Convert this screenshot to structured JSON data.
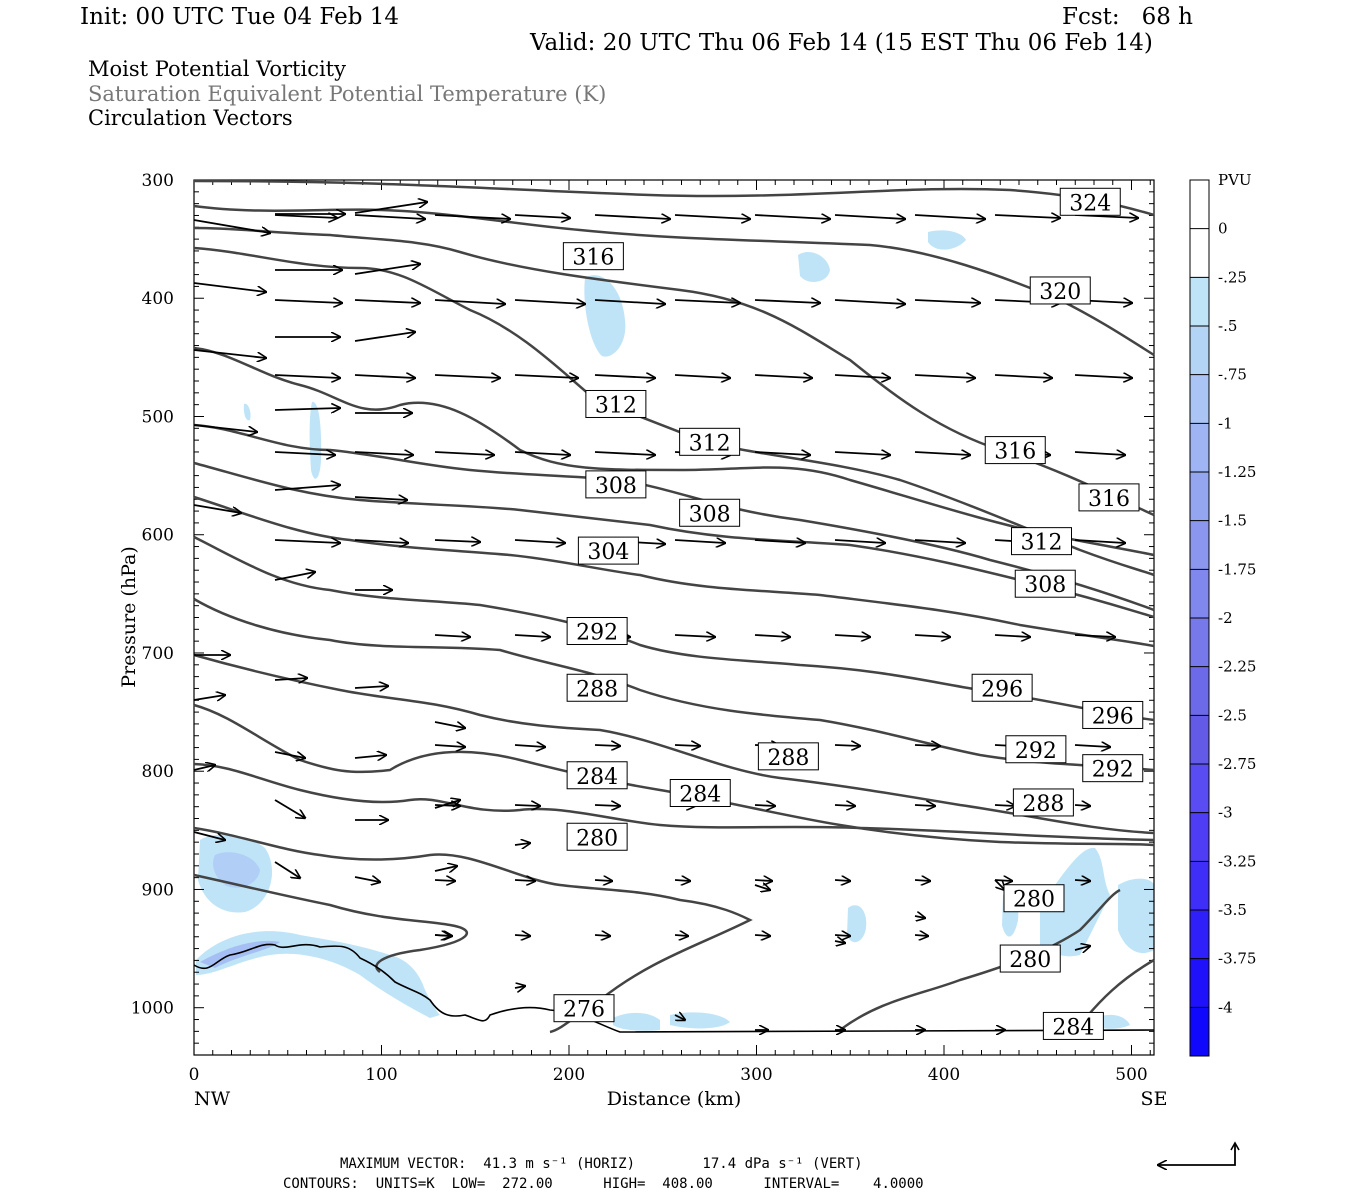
{
  "header": {
    "init": "Init: 00 UTC Tue 04 Feb 14",
    "fcst": "Fcst:   68 h",
    "valid": "Valid: 20 UTC Thu 06 Feb 14 (15 EST Thu 06 Feb 14)"
  },
  "titles": {
    "line1": "Moist Potential Vorticity",
    "line2": "Saturation Equivalent Potential Temperature (K)",
    "line3": "Circulation Vectors"
  },
  "footer": {
    "line1": "MAXIMUM VECTOR:  41.3 m s⁻¹ (HORIZ)        17.4 dPa s⁻¹ (VERT)",
    "line2": "CONTOURS:  UNITS=K  LOW=  272.00      HIGH=  408.00      INTERVAL=    4.0000"
  },
  "chart_data": {
    "type": "cross-section",
    "xlabel": "Distance (km)",
    "ylabel": "Pressure (hPa)",
    "x_ticks": [
      0,
      100,
      200,
      300,
      400,
      500
    ],
    "y_ticks": [
      300,
      400,
      500,
      600,
      700,
      800,
      900,
      1000
    ],
    "xlim": [
      0,
      512
    ],
    "ylim": [
      1040,
      300
    ],
    "endpoint_labels": {
      "left": "NW",
      "right": "SE"
    },
    "colorbar": {
      "title": "PVU",
      "labels": [
        "0",
        "-.25",
        "-.5",
        "-.75",
        "-1",
        "-1.25",
        "-1.5",
        "-1.75",
        "-2",
        "-2.25",
        "-2.5",
        "-2.75",
        "-3",
        "-3.25",
        "-3.5",
        "-3.75",
        "-4"
      ],
      "colors": [
        "#ffffff",
        "#ffffff",
        "#bfe4f8",
        "#b4d4f6",
        "#a9c4f5",
        "#9fb5f3",
        "#95a6f1",
        "#8b97ef",
        "#8188ed",
        "#7779eb",
        "#6d6aea",
        "#635be8",
        "#594cf3",
        "#4f3df5",
        "#3f2ef7",
        "#2f20f9",
        "#1f12fb",
        "#0f08fd"
      ]
    },
    "theta_es_contours": [
      {
        "value": 276,
        "label": "276"
      },
      {
        "value": 280,
        "label": "280"
      },
      {
        "value": 284,
        "label": "284"
      },
      {
        "value": 288,
        "label": "288"
      },
      {
        "value": 292,
        "label": "292"
      },
      {
        "value": 296,
        "label": "296"
      },
      {
        "value": 304,
        "label": "304"
      },
      {
        "value": 308,
        "label": "308"
      },
      {
        "value": 312,
        "label": "312"
      },
      {
        "value": 316,
        "label": "316"
      },
      {
        "value": 320,
        "label": "320"
      },
      {
        "value": 324,
        "label": "324"
      }
    ],
    "contour_labels": [
      {
        "text": "324",
        "x": 478,
        "p": 318
      },
      {
        "text": "320",
        "x": 462,
        "p": 393
      },
      {
        "text": "316",
        "x": 213,
        "p": 364
      },
      {
        "text": "316",
        "x": 438,
        "p": 528
      },
      {
        "text": "316",
        "x": 488,
        "p": 568
      },
      {
        "text": "312",
        "x": 225,
        "p": 489
      },
      {
        "text": "312",
        "x": 275,
        "p": 521
      },
      {
        "text": "312",
        "x": 452,
        "p": 605
      },
      {
        "text": "308",
        "x": 225,
        "p": 557
      },
      {
        "text": "308",
        "x": 275,
        "p": 581
      },
      {
        "text": "308",
        "x": 454,
        "p": 641
      },
      {
        "text": "304",
        "x": 221,
        "p": 613
      },
      {
        "text": "296",
        "x": 431,
        "p": 729
      },
      {
        "text": "296",
        "x": 490,
        "p": 752
      },
      {
        "text": "292",
        "x": 215,
        "p": 681
      },
      {
        "text": "292",
        "x": 449,
        "p": 781
      },
      {
        "text": "292",
        "x": 490,
        "p": 797
      },
      {
        "text": "288",
        "x": 215,
        "p": 729
      },
      {
        "text": "288",
        "x": 317,
        "p": 787
      },
      {
        "text": "288",
        "x": 453,
        "p": 826
      },
      {
        "text": "284",
        "x": 215,
        "p": 803
      },
      {
        "text": "284",
        "x": 270,
        "p": 818
      },
      {
        "text": "284",
        "x": 469,
        "p": 1015
      },
      {
        "text": "280",
        "x": 215,
        "p": 855
      },
      {
        "text": "280",
        "x": 448,
        "p": 907
      },
      {
        "text": "280",
        "x": 446,
        "p": 958
      },
      {
        "text": "276",
        "x": 208,
        "p": 1000
      }
    ],
    "max_vector": {
      "horiz": "41.3 m s-1",
      "vert": "17.4 dPa s-1"
    },
    "contour_info": {
      "units": "K",
      "low": 272.0,
      "high": 408.0,
      "interval": 4.0
    }
  }
}
